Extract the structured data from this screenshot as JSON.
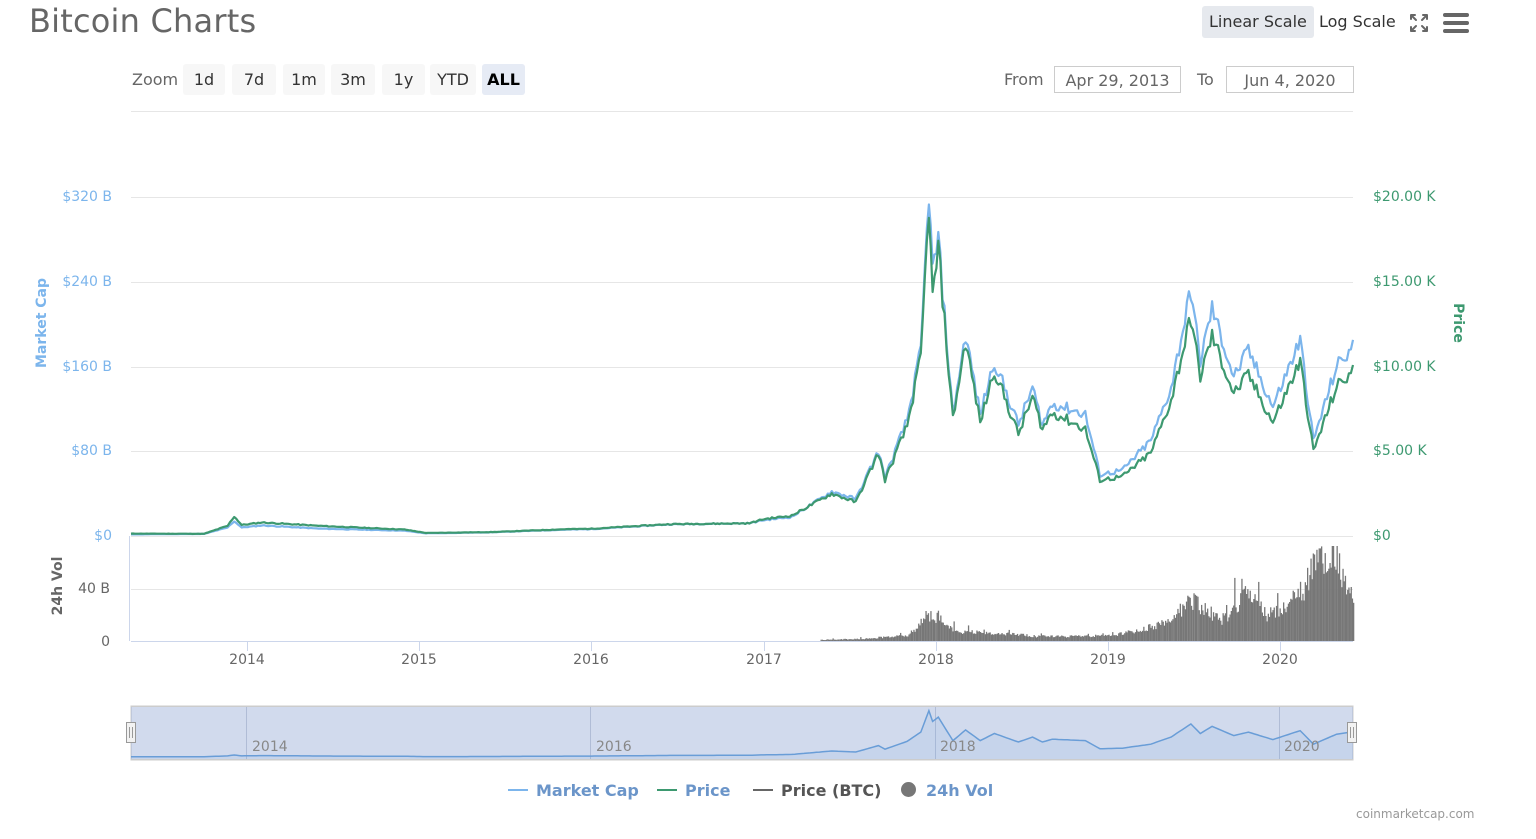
{
  "header": {
    "title": "Bitcoin Charts",
    "scale_buttons": [
      {
        "label": "Linear Scale",
        "active": true
      },
      {
        "label": "Log Scale",
        "active": false
      }
    ],
    "icons": [
      "fullscreen-icon",
      "menu-icon"
    ]
  },
  "range_selector": {
    "zoom_label": "Zoom",
    "buttons": [
      {
        "label": "1d",
        "active": false
      },
      {
        "label": "7d",
        "active": false
      },
      {
        "label": "1m",
        "active": false
      },
      {
        "label": "3m",
        "active": false
      },
      {
        "label": "1y",
        "active": false
      },
      {
        "label": "YTD",
        "active": false
      },
      {
        "label": "ALL",
        "active": true
      }
    ],
    "from_label": "From",
    "from_value": "Apr 29, 2013",
    "to_label": "To",
    "to_value": "Jun 4, 2020"
  },
  "axes": {
    "left_title": "Market Cap",
    "left_ticks": [
      "$320 B",
      "$240 B",
      "$160 B",
      "$80 B",
      "$0"
    ],
    "right_title": "Price",
    "right_ticks": [
      "$20.00 K",
      "$15.00 K",
      "$10.00 K",
      "$5.00 K",
      "$0"
    ],
    "volume_title": "24h Vol",
    "volume_ticks": [
      "40 B",
      "0"
    ],
    "x_ticks": [
      "2014",
      "2015",
      "2016",
      "2017",
      "2018",
      "2019",
      "2020"
    ],
    "navigator_ticks": [
      "2014",
      "2016",
      "2018",
      "2020"
    ]
  },
  "legend": [
    {
      "label": "Market Cap",
      "color": "#7cb5ec",
      "symbol": "line"
    },
    {
      "label": "Price",
      "color": "#3d9970",
      "symbol": "line"
    },
    {
      "label": "Price (BTC)",
      "color": "#666666",
      "symbol": "line",
      "label_color": "#555555"
    },
    {
      "label": "24h Vol",
      "color": "#777777",
      "symbol": "dot",
      "label_color": "#6b95c9"
    }
  ],
  "credits": "coinmarketcap.com",
  "colors": {
    "market_cap": "#7cb5ec",
    "price": "#3d9970",
    "volume": "#777777",
    "grid": "#e6e6e6",
    "navigator_fill": "rgba(102,133,194,0.3)"
  },
  "chart_data": {
    "type": "line",
    "title": "Bitcoin Charts",
    "x_range": [
      "Apr 29, 2013",
      "Jun 4, 2020"
    ],
    "legend_position": "bottom",
    "grid": true,
    "series": [
      {
        "name": "Market Cap",
        "axis": "left",
        "unit": "USD billions",
        "ylim": [
          0,
          320
        ],
        "points": [
          [
            "2013-04-29",
            1.5
          ],
          [
            "2013-10-01",
            2
          ],
          [
            "2013-11-20",
            8
          ],
          [
            "2013-12-04",
            14
          ],
          [
            "2013-12-20",
            8
          ],
          [
            "2014-02-01",
            10
          ],
          [
            "2014-06-01",
            7
          ],
          [
            "2014-12-01",
            5
          ],
          [
            "2015-01-15",
            2.5
          ],
          [
            "2015-06-01",
            3.5
          ],
          [
            "2015-11-05",
            6
          ],
          [
            "2016-01-01",
            6.5
          ],
          [
            "2016-06-15",
            11
          ],
          [
            "2016-12-01",
            12
          ],
          [
            "2017-01-01",
            15
          ],
          [
            "2017-03-01",
            18
          ],
          [
            "2017-05-25",
            42
          ],
          [
            "2017-07-15",
            35
          ],
          [
            "2017-09-01",
            80
          ],
          [
            "2017-09-15",
            55
          ],
          [
            "2017-11-01",
            110
          ],
          [
            "2017-11-30",
            175
          ],
          [
            "2017-12-17",
            325
          ],
          [
            "2017-12-25",
            250
          ],
          [
            "2018-01-06",
            280
          ],
          [
            "2018-02-06",
            115
          ],
          [
            "2018-03-05",
            190
          ],
          [
            "2018-04-05",
            115
          ],
          [
            "2018-05-05",
            165
          ],
          [
            "2018-06-25",
            105
          ],
          [
            "2018-07-25",
            140
          ],
          [
            "2018-08-15",
            105
          ],
          [
            "2018-09-05",
            125
          ],
          [
            "2018-11-14",
            115
          ],
          [
            "2018-12-15",
            58
          ],
          [
            "2019-02-01",
            62
          ],
          [
            "2019-04-02",
            90
          ],
          [
            "2019-05-15",
            140
          ],
          [
            "2019-06-26",
            232
          ],
          [
            "2019-07-16",
            165
          ],
          [
            "2019-08-10",
            215
          ],
          [
            "2019-09-25",
            150
          ],
          [
            "2019-10-26",
            175
          ],
          [
            "2019-12-17",
            122
          ],
          [
            "2020-02-13",
            185
          ],
          [
            "2020-03-12",
            90
          ],
          [
            "2020-04-30",
            160
          ],
          [
            "2020-06-04",
            178
          ]
        ]
      },
      {
        "name": "Price",
        "axis": "right",
        "unit": "USD",
        "ylim": [
          0,
          20000
        ],
        "points": [
          [
            "2013-04-29",
            140
          ],
          [
            "2013-10-01",
            130
          ],
          [
            "2013-11-20",
            600
          ],
          [
            "2013-12-04",
            1150
          ],
          [
            "2013-12-20",
            650
          ],
          [
            "2014-02-01",
            800
          ],
          [
            "2014-06-01",
            600
          ],
          [
            "2014-12-01",
            380
          ],
          [
            "2015-01-15",
            180
          ],
          [
            "2015-06-01",
            230
          ],
          [
            "2015-11-05",
            400
          ],
          [
            "2016-01-01",
            430
          ],
          [
            "2016-06-15",
            700
          ],
          [
            "2016-12-01",
            750
          ],
          [
            "2017-01-01",
            1000
          ],
          [
            "2017-03-01",
            1200
          ],
          [
            "2017-05-25",
            2500
          ],
          [
            "2017-07-15",
            2000
          ],
          [
            "2017-09-01",
            4900
          ],
          [
            "2017-09-15",
            3300
          ],
          [
            "2017-11-01",
            6500
          ],
          [
            "2017-11-30",
            10500
          ],
          [
            "2017-12-17",
            19500
          ],
          [
            "2017-12-25",
            14000
          ],
          [
            "2018-01-06",
            17000
          ],
          [
            "2018-02-06",
            6900
          ],
          [
            "2018-03-05",
            11500
          ],
          [
            "2018-04-05",
            6700
          ],
          [
            "2018-05-05",
            9800
          ],
          [
            "2018-06-25",
            6000
          ],
          [
            "2018-07-25",
            8200
          ],
          [
            "2018-08-15",
            6300
          ],
          [
            "2018-09-05",
            7300
          ],
          [
            "2018-11-14",
            6300
          ],
          [
            "2018-12-15",
            3300
          ],
          [
            "2019-02-01",
            3500
          ],
          [
            "2019-04-02",
            4900
          ],
          [
            "2019-05-15",
            8000
          ],
          [
            "2019-06-26",
            12900
          ],
          [
            "2019-07-16",
            9400
          ],
          [
            "2019-08-10",
            11800
          ],
          [
            "2019-09-25",
            8400
          ],
          [
            "2019-10-26",
            9500
          ],
          [
            "2019-12-17",
            6700
          ],
          [
            "2020-02-13",
            10300
          ],
          [
            "2020-03-12",
            5000
          ],
          [
            "2020-04-30",
            8800
          ],
          [
            "2020-06-04",
            9700
          ]
        ]
      },
      {
        "name": "24h Vol",
        "axis": "volume",
        "type": "column",
        "unit": "USD billions",
        "ylim": [
          0,
          80
        ],
        "points": [
          [
            "2017-05-01",
            1
          ],
          [
            "2017-08-01",
            2
          ],
          [
            "2017-11-01",
            5
          ],
          [
            "2017-12-20",
            22
          ],
          [
            "2018-01-05",
            20
          ],
          [
            "2018-02-15",
            8
          ],
          [
            "2018-05-15",
            7
          ],
          [
            "2018-08-01",
            4
          ],
          [
            "2018-11-01",
            4
          ],
          [
            "2019-01-15",
            5
          ],
          [
            "2019-04-01",
            12
          ],
          [
            "2019-05-15",
            20
          ],
          [
            "2019-06-26",
            37
          ],
          [
            "2019-07-15",
            30
          ],
          [
            "2019-09-01",
            17
          ],
          [
            "2019-10-26",
            45
          ],
          [
            "2019-12-01",
            22
          ],
          [
            "2020-01-15",
            30
          ],
          [
            "2020-02-20",
            45
          ],
          [
            "2020-03-13",
            68
          ],
          [
            "2020-04-30",
            73
          ],
          [
            "2020-05-10",
            60
          ],
          [
            "2020-06-04",
            40
          ]
        ]
      }
    ],
    "xlabel": "",
    "ylabel_left": "Market Cap",
    "ylabel_right": "Price",
    "ylabel_volume": "24h Vol"
  }
}
